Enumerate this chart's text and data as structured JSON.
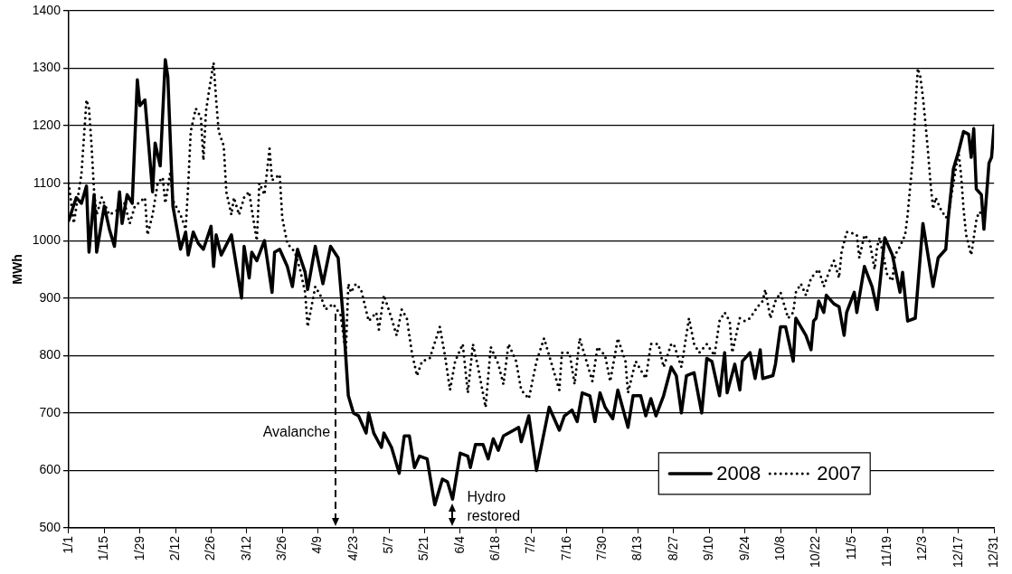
{
  "chart_data": {
    "type": "line",
    "ylabel": "MWh",
    "grid": "y",
    "legend": "bottom right",
    "marker": "none",
    "xlim": [
      "--01-01",
      "--12-31"
    ],
    "xticks": [
      {
        "value": "--01-01",
        "label": "1/1"
      },
      {
        "value": "--01-15",
        "label": "1/15"
      },
      {
        "value": "--01-29",
        "label": "1/29"
      },
      {
        "value": "--02-12",
        "label": "2/12"
      },
      {
        "value": "--02-26",
        "label": "2/26"
      },
      {
        "value": "--03-12",
        "label": "3/12"
      },
      {
        "value": "--03-26",
        "label": "3/26"
      },
      {
        "value": "--04-09",
        "label": "4/9"
      },
      {
        "value": "--04-23",
        "label": "4/23"
      },
      {
        "value": "--05-07",
        "label": "5/7"
      },
      {
        "value": "--05-21",
        "label": "5/21"
      },
      {
        "value": "--06-04",
        "label": "6/4"
      },
      {
        "value": "--06-18",
        "label": "6/18"
      },
      {
        "value": "--07-02",
        "label": "7/2"
      },
      {
        "value": "--07-16",
        "label": "7/16"
      },
      {
        "value": "--07-30",
        "label": "7/30"
      },
      {
        "value": "--08-13",
        "label": "8/13"
      },
      {
        "value": "--08-27",
        "label": "8/27"
      },
      {
        "value": "--09-10",
        "label": "9/10"
      },
      {
        "value": "--09-24",
        "label": "9/24"
      },
      {
        "value": "--10-08",
        "label": "10/8"
      },
      {
        "value": "--10-22",
        "label": "10/22"
      },
      {
        "value": "--11-05",
        "label": "11/5"
      },
      {
        "value": "--11-19",
        "label": "11/19"
      },
      {
        "value": "--12-03",
        "label": "12/3"
      },
      {
        "value": "--12-17",
        "label": "12/17"
      },
      {
        "value": "--12-31",
        "label": "12/31"
      }
    ],
    "ylim": [
      500,
      1400
    ],
    "yticks": [
      500,
      600,
      700,
      800,
      900,
      1000,
      1100,
      1200,
      1300,
      1400
    ],
    "ref_lines": [
      {
        "axis": "x",
        "value": "--04-16",
        "label": "Avalanche",
        "line_style": "dashed"
      },
      {
        "axis": "x",
        "value": "--06-01",
        "label": "Hydro restored",
        "line_style": "dashed"
      }
    ],
    "series": [
      {
        "name": "2008",
        "color": "#000000",
        "line_style": "solid",
        "x": [
          "--01-01",
          "--01-04",
          "--01-06",
          "--01-08",
          "--01-09",
          "--01-11",
          "--01-12",
          "--01-15",
          "--01-17",
          "--01-19",
          "--01-21",
          "--01-22",
          "--01-24",
          "--01-26",
          "--01-28",
          "--01-29",
          "--01-31",
          "--02-03",
          "--02-04",
          "--02-06",
          "--02-08",
          "--02-09",
          "--02-11",
          "--02-14",
          "--02-16",
          "--02-17",
          "--02-19",
          "--02-21",
          "--02-23",
          "--02-26",
          "--02-27",
          "--02-28",
          "--03-02",
          "--03-06",
          "--03-10",
          "--03-11",
          "--03-13",
          "--03-14",
          "--03-16",
          "--03-19",
          "--03-22",
          "--03-23",
          "--03-25",
          "--03-28",
          "--03-30",
          "--04-01",
          "--04-04",
          "--04-05",
          "--04-08",
          "--04-11",
          "--04-14",
          "--04-17",
          "--04-19",
          "--04-21",
          "--04-23",
          "--04-25",
          "--04-28",
          "--04-29",
          "--05-01",
          "--05-04",
          "--05-05",
          "--05-08",
          "--05-11",
          "--05-13",
          "--05-15",
          "--05-17",
          "--05-19",
          "--05-22",
          "--05-25",
          "--05-28",
          "--05-30",
          "--06-01",
          "--06-04",
          "--06-07",
          "--06-08",
          "--06-10",
          "--06-13",
          "--06-15",
          "--06-17",
          "--06-19",
          "--06-21",
          "--06-25",
          "--06-27",
          "--06-28",
          "--07-01",
          "--07-04",
          "--07-09",
          "--07-13",
          "--07-15",
          "--07-18",
          "--07-20",
          "--07-22",
          "--07-25",
          "--07-27",
          "--07-29",
          "--07-31",
          "--08-03",
          "--08-05",
          "--08-09",
          "--08-11",
          "--08-14",
          "--08-16",
          "--08-18",
          "--08-20",
          "--08-23",
          "--08-26",
          "--08-28",
          "--08-30",
          "--09-01",
          "--09-04",
          "--09-07",
          "--09-09",
          "--09-11",
          "--09-14",
          "--09-16",
          "--09-17",
          "--09-20",
          "--09-22",
          "--09-23",
          "--09-26",
          "--09-28",
          "--09-30",
          "--10-01",
          "--10-05",
          "--10-06",
          "--10-08",
          "--10-10",
          "--10-13",
          "--10-14",
          "--10-18",
          "--10-20",
          "--10-21",
          "--10-22",
          "--10-23",
          "--10-25",
          "--10-26",
          "--10-29",
          "--10-31",
          "--11-02",
          "--11-03",
          "--11-06",
          "--11-07",
          "--11-10",
          "--11-13",
          "--11-15",
          "--11-18",
          "--11-21",
          "--11-24",
          "--11-25",
          "--11-27",
          "--11-30",
          "--12-03",
          "--12-07",
          "--12-09",
          "--12-12",
          "--12-13",
          "--12-15",
          "--12-17",
          "--12-19",
          "--12-21",
          "--12-22",
          "--12-23",
          "--12-24",
          "--12-26",
          "--12-27",
          "--12-29",
          "--12-30",
          "--12-31"
        ],
        "values": [
          1035,
          1075,
          1065,
          1095,
          980,
          1080,
          980,
          1060,
          1020,
          990,
          1085,
          1030,
          1080,
          1065,
          1280,
          1235,
          1245,
          1085,
          1170,
          1130,
          1315,
          1285,
          1060,
          985,
          1015,
          975,
          1015,
          995,
          985,
          1025,
          955,
          1010,
          975,
          1010,
          900,
          990,
          935,
          980,
          965,
          1000,
          910,
          980,
          985,
          955,
          920,
          985,
          945,
          915,
          990,
          925,
          990,
          970,
          865,
          730,
          700,
          695,
          665,
          700,
          665,
          640,
          665,
          640,
          595,
          660,
          660,
          605,
          625,
          620,
          540,
          585,
          580,
          550,
          630,
          625,
          605,
          645,
          645,
          620,
          655,
          635,
          660,
          670,
          675,
          650,
          695,
          600,
          710,
          670,
          695,
          705,
          685,
          735,
          730,
          685,
          735,
          710,
          690,
          740,
          675,
          730,
          730,
          695,
          725,
          695,
          730,
          780,
          765,
          700,
          765,
          770,
          700,
          795,
          790,
          730,
          805,
          735,
          785,
          740,
          790,
          805,
          760,
          810,
          760,
          765,
          785,
          850,
          850,
          790,
          865,
          835,
          810,
          860,
          865,
          895,
          875,
          905,
          890,
          885,
          835,
          875,
          910,
          875,
          955,
          920,
          880,
          1005,
          975,
          910,
          945,
          860,
          865,
          1030,
          920,
          970,
          985,
          1040,
          1125,
          1155,
          1190,
          1185,
          1145,
          1195,
          1090,
          1080,
          1020,
          1135,
          1145,
          1200
        ]
      },
      {
        "name": "2007",
        "color": "#000000",
        "line_style": "dotted",
        "x": [
          "--01-01",
          "--01-03",
          "--01-06",
          "--01-08",
          "--01-09",
          "--01-10",
          "--01-11",
          "--01-12",
          "--01-14",
          "--01-17",
          "--01-19",
          "--01-21",
          "--01-23",
          "--01-25",
          "--01-27",
          "--01-31",
          "--02-01",
          "--02-03",
          "--02-05",
          "--02-07",
          "--02-08",
          "--02-10",
          "--02-11",
          "--02-14",
          "--02-16",
          "--02-17",
          "--02-18",
          "--02-20",
          "--02-22",
          "--02-23",
          "--02-24",
          "--02-25",
          "--02-27",
          "--02-28",
          "--03-01",
          "--03-03",
          "--03-04",
          "--03-06",
          "--03-07",
          "--03-09",
          "--03-11",
          "--03-13",
          "--03-14",
          "--03-16",
          "--03-17",
          "--03-19",
          "--03-21",
          "--03-22",
          "--03-25",
          "--03-26",
          "--03-28",
          "--03-31",
          "--04-02",
          "--04-04",
          "--04-05",
          "--04-08",
          "--04-10",
          "--04-12",
          "--04-15",
          "--04-18",
          "--04-20",
          "--04-21",
          "--04-22",
          "--04-24",
          "--04-26",
          "--04-29",
          "--05-02",
          "--05-03",
          "--05-05",
          "--05-08",
          "--05-10",
          "--05-12",
          "--05-14",
          "--05-16",
          "--05-18",
          "--05-20",
          "--05-23",
          "--05-27",
          "--05-29",
          "--05-31",
          "--06-02",
          "--06-05",
          "--06-07",
          "--06-09",
          "--06-11",
          "--06-14",
          "--06-16",
          "--06-19",
          "--06-21",
          "--06-23",
          "--06-26",
          "--06-28",
          "--07-01",
          "--07-04",
          "--07-07",
          "--07-10",
          "--07-13",
          "--07-14",
          "--07-17",
          "--07-19",
          "--07-21",
          "--07-23",
          "--07-26",
          "--07-28",
          "--07-31",
          "--08-02",
          "--08-05",
          "--08-08",
          "--08-09",
          "--08-12",
          "--08-16",
          "--08-18",
          "--08-21",
          "--08-23",
          "--08-26",
          "--08-27",
          "--08-30",
          "--09-02",
          "--09-04",
          "--09-06",
          "--09-09",
          "--09-12",
          "--09-14",
          "--09-16",
          "--09-18",
          "--09-19",
          "--09-22",
          "--09-24",
          "--09-26",
          "--09-29",
          "--10-01",
          "--10-02",
          "--10-04",
          "--10-06",
          "--10-08",
          "--10-11",
          "--10-13",
          "--10-14",
          "--10-16",
          "--10-18",
          "--10-20",
          "--10-23",
          "--10-25",
          "--10-27",
          "--10-29",
          "--10-31",
          "--11-01",
          "--11-03",
          "--11-04",
          "--11-07",
          "--11-08",
          "--11-10",
          "--11-12",
          "--11-14",
          "--11-15",
          "--11-16",
          "--11-19",
          "--11-21",
          "--11-22",
          "--11-24",
          "--11-26",
          "--11-27",
          "--11-28",
          "--11-29",
          "--11-30",
          "--12-01",
          "--12-02",
          "--12-03",
          "--12-04",
          "--12-05",
          "--12-06",
          "--12-07",
          "--12-08",
          "--12-10",
          "--12-12",
          "--12-13",
          "--12-15",
          "--12-17",
          "--12-18",
          "--12-19",
          "--12-20",
          "--12-22",
          "--12-24",
          "--12-25",
          "--12-27"
        ],
        "values": [
          1100,
          1030,
          1115,
          1245,
          1230,
          1165,
          1085,
          1045,
          1075,
          1045,
          1050,
          1055,
          1065,
          1030,
          1060,
          1075,
          1010,
          1045,
          1100,
          1110,
          1065,
          1120,
          1070,
          1045,
          1020,
          1095,
          1190,
          1230,
          1215,
          1140,
          1225,
          1255,
          1310,
          1245,
          1190,
          1165,
          1085,
          1045,
          1075,
          1045,
          1075,
          1085,
          1055,
          1000,
          1100,
          1080,
          1160,
          1105,
          1115,
          1040,
          995,
          980,
          950,
          910,
          850,
          920,
          905,
          880,
          890,
          870,
          805,
          925,
          910,
          925,
          915,
          860,
          875,
          845,
          905,
          865,
          835,
          880,
          865,
          805,
          765,
          790,
          795,
          850,
          800,
          740,
          790,
          820,
          735,
          820,
          780,
          710,
          815,
          785,
          750,
          820,
          790,
          740,
          725,
          790,
          830,
          785,
          740,
          805,
          805,
          750,
          830,
          800,
          755,
          815,
          800,
          755,
          830,
          790,
          735,
          790,
          760,
          820,
          820,
          780,
          820,
          820,
          780,
          865,
          820,
          805,
          820,
          800,
          860,
          875,
          860,
          805,
          865,
          860,
          865,
          885,
          895,
          915,
          865,
          895,
          910,
          865,
          875,
          910,
          925,
          905,
          935,
          950,
          920,
          945,
          965,
          935,
          980,
          1015,
          1015,
          1010,
          970,
          1010,
          1000,
          950,
          990,
          1005,
          940,
          930,
          975,
          990,
          1010,
          1045,
          1095,
          1140,
          1230,
          1300,
          1285,
          1250,
          1205,
          1155,
          1100,
          1055,
          1075,
          1055,
          1040,
          1045,
          1100,
          1155,
          1115,
          1055,
          1010,
          975,
          1035,
          1050,
          1045
        ]
      }
    ]
  }
}
